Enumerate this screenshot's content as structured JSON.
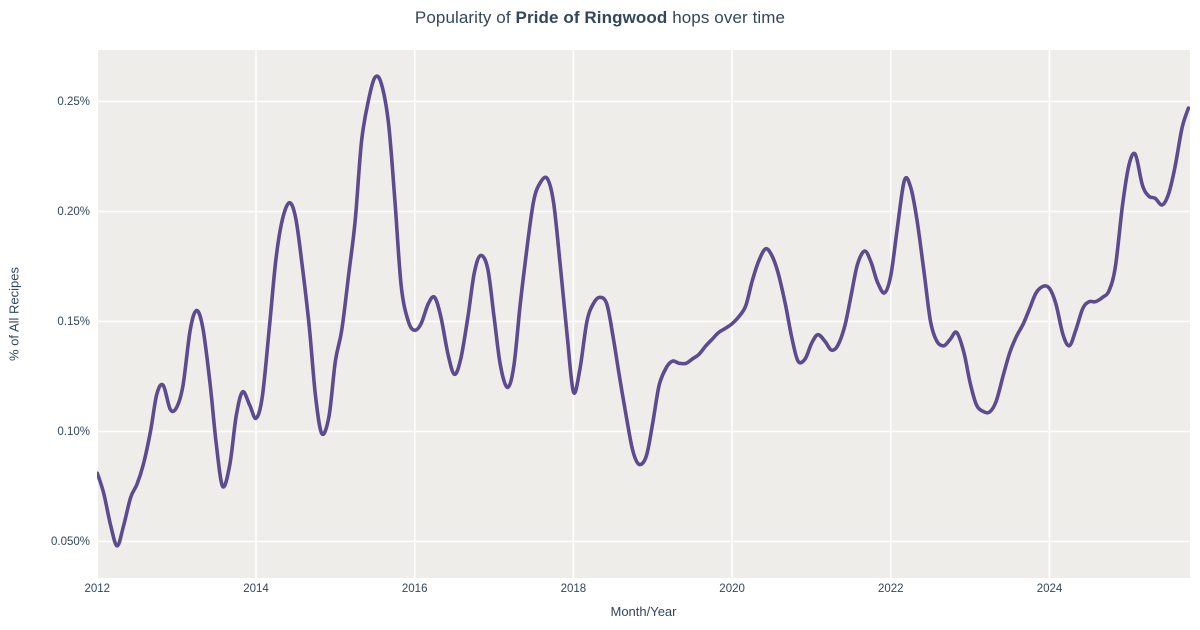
{
  "figure": {
    "title": {
      "prefix": "Popularity of ",
      "emphasis": "Pride of Ringwood",
      "suffix": " hops over time"
    },
    "x_axis": {
      "label": "Month/Year",
      "ticks": [
        {
          "value": 2012,
          "label": "2012"
        },
        {
          "value": 2014,
          "label": "2014"
        },
        {
          "value": 2016,
          "label": "2016"
        },
        {
          "value": 2018,
          "label": "2018"
        },
        {
          "value": 2020,
          "label": "2020"
        },
        {
          "value": 2022,
          "label": "2022"
        },
        {
          "value": 2024,
          "label": "2024"
        }
      ]
    },
    "y_axis": {
      "label": "% of All Recipes",
      "ticks": [
        {
          "value": 0.05,
          "label": "0.050%"
        },
        {
          "value": 0.1,
          "label": "0.10%"
        },
        {
          "value": 0.15,
          "label": "0.15%"
        },
        {
          "value": 0.2,
          "label": "0.20%"
        },
        {
          "value": 0.25,
          "label": "0.25%"
        }
      ]
    },
    "colors": {
      "line": "#5d4b8f",
      "plot_bg": "#efedea",
      "grid": "#ffffff",
      "text": "#33475c"
    }
  },
  "chart_data": {
    "type": "line",
    "title": "Popularity of Pride of Ringwood hops over time",
    "xlabel": "Month/Year",
    "ylabel": "% of All Recipes",
    "x_range": [
      2011.996,
      2025.77
    ],
    "y_range": [
      0.0334,
      0.2734
    ],
    "grid": true,
    "legend_position": "none",
    "y_unit": "percent_of_all_recipes",
    "series": [
      {
        "name": "Pride of Ringwood",
        "color": "#5d4b8f",
        "x": [
          2012.0,
          2012.08,
          2012.17,
          2012.25,
          2012.33,
          2012.42,
          2012.5,
          2012.58,
          2012.67,
          2012.75,
          2012.83,
          2012.92,
          2013.0,
          2013.08,
          2013.17,
          2013.25,
          2013.33,
          2013.42,
          2013.5,
          2013.58,
          2013.67,
          2013.75,
          2013.83,
          2013.92,
          2014.0,
          2014.08,
          2014.17,
          2014.25,
          2014.33,
          2014.42,
          2014.5,
          2014.58,
          2014.67,
          2014.75,
          2014.83,
          2014.92,
          2015.0,
          2015.08,
          2015.17,
          2015.25,
          2015.33,
          2015.42,
          2015.5,
          2015.58,
          2015.67,
          2015.75,
          2015.83,
          2015.92,
          2016.0,
          2016.08,
          2016.17,
          2016.25,
          2016.33,
          2016.42,
          2016.5,
          2016.58,
          2016.67,
          2016.75,
          2016.83,
          2016.92,
          2017.0,
          2017.08,
          2017.17,
          2017.25,
          2017.33,
          2017.42,
          2017.5,
          2017.58,
          2017.67,
          2017.75,
          2017.83,
          2017.92,
          2018.0,
          2018.08,
          2018.17,
          2018.25,
          2018.33,
          2018.42,
          2018.5,
          2018.58,
          2018.67,
          2018.75,
          2018.83,
          2018.92,
          2019.0,
          2019.08,
          2019.17,
          2019.25,
          2019.33,
          2019.42,
          2019.5,
          2019.58,
          2019.67,
          2019.75,
          2019.83,
          2019.92,
          2020.0,
          2020.08,
          2020.17,
          2020.25,
          2020.33,
          2020.42,
          2020.5,
          2020.58,
          2020.67,
          2020.75,
          2020.83,
          2020.92,
          2021.0,
          2021.08,
          2021.17,
          2021.25,
          2021.33,
          2021.42,
          2021.5,
          2021.58,
          2021.67,
          2021.75,
          2021.83,
          2021.92,
          2022.0,
          2022.08,
          2022.17,
          2022.25,
          2022.33,
          2022.42,
          2022.5,
          2022.58,
          2022.67,
          2022.75,
          2022.83,
          2022.92,
          2023.0,
          2023.08,
          2023.17,
          2023.25,
          2023.33,
          2023.42,
          2023.5,
          2023.58,
          2023.67,
          2023.75,
          2023.83,
          2023.92,
          2024.0,
          2024.08,
          2024.17,
          2024.25,
          2024.33,
          2024.42,
          2024.5,
          2024.58,
          2024.67,
          2024.75,
          2024.83,
          2024.92,
          2025.0,
          2025.08,
          2025.17,
          2025.25,
          2025.33,
          2025.42,
          2025.5,
          2025.58,
          2025.67,
          2025.75
        ],
        "y": [
          0.081,
          0.072,
          0.057,
          0.048,
          0.057,
          0.07,
          0.076,
          0.085,
          0.1,
          0.117,
          0.121,
          0.11,
          0.111,
          0.121,
          0.146,
          0.155,
          0.147,
          0.122,
          0.094,
          0.075,
          0.085,
          0.107,
          0.118,
          0.112,
          0.106,
          0.116,
          0.148,
          0.178,
          0.196,
          0.204,
          0.197,
          0.176,
          0.148,
          0.116,
          0.099,
          0.107,
          0.132,
          0.146,
          0.172,
          0.196,
          0.232,
          0.251,
          0.261,
          0.258,
          0.24,
          0.205,
          0.166,
          0.15,
          0.146,
          0.149,
          0.158,
          0.161,
          0.152,
          0.135,
          0.126,
          0.133,
          0.152,
          0.172,
          0.18,
          0.174,
          0.152,
          0.13,
          0.12,
          0.13,
          0.158,
          0.185,
          0.205,
          0.213,
          0.215,
          0.204,
          0.177,
          0.144,
          0.118,
          0.128,
          0.15,
          0.158,
          0.161,
          0.158,
          0.143,
          0.125,
          0.106,
          0.091,
          0.085,
          0.089,
          0.104,
          0.121,
          0.129,
          0.132,
          0.131,
          0.131,
          0.133,
          0.135,
          0.139,
          0.142,
          0.145,
          0.147,
          0.149,
          0.152,
          0.157,
          0.168,
          0.177,
          0.183,
          0.18,
          0.172,
          0.158,
          0.143,
          0.132,
          0.133,
          0.14,
          0.144,
          0.141,
          0.137,
          0.139,
          0.148,
          0.162,
          0.176,
          0.182,
          0.177,
          0.168,
          0.163,
          0.171,
          0.192,
          0.214,
          0.211,
          0.196,
          0.172,
          0.15,
          0.141,
          0.139,
          0.142,
          0.145,
          0.136,
          0.122,
          0.112,
          0.109,
          0.109,
          0.114,
          0.126,
          0.136,
          0.143,
          0.149,
          0.156,
          0.163,
          0.166,
          0.165,
          0.158,
          0.144,
          0.139,
          0.146,
          0.156,
          0.159,
          0.159,
          0.161,
          0.164,
          0.175,
          0.203,
          0.221,
          0.226,
          0.212,
          0.207,
          0.206,
          0.203,
          0.208,
          0.22,
          0.238,
          0.247
        ]
      }
    ]
  }
}
